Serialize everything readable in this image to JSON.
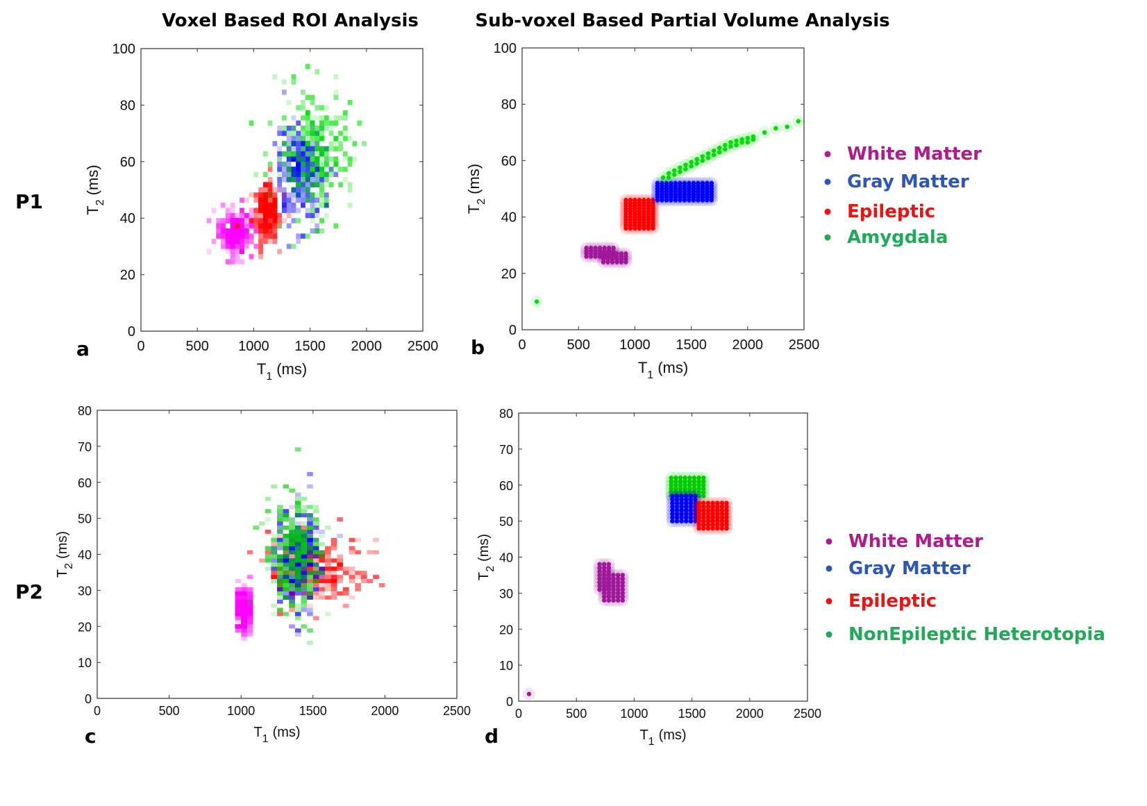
{
  "figure": {
    "title_left": "Voxel Based ROI Analysis",
    "title_right": "Sub-voxel Based Partial Volume Analysis",
    "row_labels": [
      "P1",
      "P2"
    ]
  },
  "colors": {
    "white_matter": "#ff00ff",
    "white_matter_dot": "#a0189a",
    "gray_matter": "#0000ff",
    "epileptic": "#ff0000",
    "amygdala": "#00dd00",
    "nonepileptic": "#00cc00",
    "legend_white_matter": "#b0198f",
    "legend_gray_matter": "#2b58b8",
    "legend_epileptic": "#ee1111",
    "legend_amygdala": "#1faa55"
  },
  "legends": {
    "p1": [
      {
        "label": "White Matter",
        "color_key": "legend_white_matter"
      },
      {
        "label": "Gray Matter",
        "color_key": "legend_gray_matter"
      },
      {
        "label": "Epileptic",
        "color_key": "legend_epileptic"
      },
      {
        "label": "Amygdala",
        "color_key": "legend_amygdala"
      }
    ],
    "p2": [
      {
        "label": "White Matter",
        "color_key": "legend_white_matter"
      },
      {
        "label": "Gray Matter",
        "color_key": "legend_gray_matter"
      },
      {
        "label": "Epileptic",
        "color_key": "legend_epileptic"
      },
      {
        "label": "NonEpileptic Heterotopia",
        "color_key": "legend_amygdala"
      }
    ]
  },
  "chart_data": [
    {
      "id": "a",
      "panel_label": "a",
      "type": "heatmap",
      "xlabel_main": "T",
      "xlabel_sub": "1",
      "xlabel_unit": "(ms)",
      "ylabel_main": "T",
      "ylabel_sub": "2",
      "ylabel_unit": "(ms)",
      "xlim": [
        0,
        2500
      ],
      "ylim": [
        0,
        100
      ],
      "xticks": [
        "0",
        "500",
        "1000",
        "1500",
        "2000",
        "2500"
      ],
      "yticks": [
        "0",
        "20",
        "40",
        "60",
        "80",
        "100"
      ],
      "clusters": [
        {
          "name": "White Matter",
          "color_key": "white_matter",
          "center": [
            830,
            35
          ],
          "spread": [
            70,
            4
          ]
        },
        {
          "name": "Epileptic",
          "color_key": "epileptic",
          "center": [
            1110,
            42
          ],
          "spread": [
            60,
            5
          ]
        },
        {
          "name": "Gray Matter",
          "color_key": "gray_matter",
          "center": [
            1420,
            57
          ],
          "spread": [
            110,
            8
          ]
        },
        {
          "name": "Amygdala",
          "color_key": "amygdala",
          "center": [
            1560,
            63
          ],
          "spread": [
            170,
            11
          ]
        }
      ]
    },
    {
      "id": "b",
      "panel_label": "b",
      "type": "scatter",
      "xlabel_main": "T",
      "xlabel_sub": "1",
      "xlabel_unit": "(ms)",
      "ylabel_main": "T",
      "ylabel_sub": "2",
      "ylabel_unit": "(ms)",
      "xlim": [
        0,
        2500
      ],
      "ylim": [
        0,
        100
      ],
      "xticks": [
        "0",
        "500",
        "1000",
        "1500",
        "2000",
        "2500"
      ],
      "yticks": [
        "0",
        "20",
        "40",
        "60",
        "80",
        "100"
      ],
      "series": [
        {
          "name": "White Matter",
          "color_key": "white_matter_dot",
          "blobs": [
            {
              "x": [
                570,
                820
              ],
              "y": [
                26,
                29
              ]
            },
            {
              "x": [
                720,
                940
              ],
              "y": [
                24,
                27
              ]
            }
          ]
        },
        {
          "name": "Epileptic",
          "color_key": "epileptic",
          "blobs": [
            {
              "x": [
                920,
                1180
              ],
              "y": [
                36,
                46
              ]
            }
          ]
        },
        {
          "name": "Gray Matter",
          "color_key": "gray_matter",
          "blobs": [
            {
              "x": [
                1200,
                1700
              ],
              "y": [
                46,
                52
              ]
            }
          ]
        },
        {
          "name": "Amygdala",
          "color_key": "amygdala",
          "points": [
            [
              130,
              10
            ],
            [
              1250,
              54
            ],
            [
              1300,
              55.5
            ],
            [
              1350,
              56.5
            ],
            [
              1400,
              57.5
            ],
            [
              1450,
              58.5
            ],
            [
              1500,
              59.5
            ],
            [
              1550,
              60.5
            ],
            [
              1600,
              61.5
            ],
            [
              1650,
              62.5
            ],
            [
              1700,
              63.5
            ],
            [
              1750,
              64.5
            ],
            [
              1800,
              65.5
            ],
            [
              1850,
              66.5
            ],
            [
              1900,
              67
            ],
            [
              1950,
              67.5
            ],
            [
              2000,
              68
            ],
            [
              2050,
              68.5
            ],
            [
              2150,
              70
            ],
            [
              2250,
              71.5
            ],
            [
              2350,
              72
            ],
            [
              2450,
              74
            ]
          ],
          "band": [
            [
              1300,
              54
            ],
            [
              1400,
              56
            ],
            [
              1500,
              58
            ],
            [
              1600,
              60
            ],
            [
              1700,
              62
            ],
            [
              1800,
              64
            ],
            [
              1900,
              65.5
            ],
            [
              2000,
              66.5
            ]
          ]
        }
      ]
    },
    {
      "id": "c",
      "panel_label": "c",
      "type": "heatmap",
      "xlabel_main": "T",
      "xlabel_sub": "1",
      "xlabel_unit": "(ms)",
      "ylabel_main": "T",
      "ylabel_sub": "2",
      "ylabel_unit": "(ms)",
      "xlim": [
        0,
        2500
      ],
      "ylim": [
        0,
        80
      ],
      "xticks": [
        "0",
        "500",
        "1000",
        "1500",
        "2000",
        "2500"
      ],
      "yticks": [
        "0",
        "10",
        "20",
        "30",
        "40",
        "50",
        "60",
        "70",
        "80"
      ],
      "clusters": [
        {
          "name": "White Matter",
          "color_key": "white_matter",
          "center": [
            1020,
            24
          ],
          "spread": [
            20,
            3
          ]
        },
        {
          "name": "Epileptic",
          "color_key": "epileptic",
          "center": [
            1530,
            35
          ],
          "spread": [
            170,
            5
          ]
        },
        {
          "name": "Gray Matter",
          "color_key": "gray_matter",
          "center": [
            1400,
            39
          ],
          "spread": [
            70,
            7
          ]
        },
        {
          "name": "NonEpileptic Heterotopia",
          "color_key": "nonepileptic",
          "center": [
            1370,
            40
          ],
          "spread": [
            90,
            8
          ]
        }
      ]
    },
    {
      "id": "d",
      "panel_label": "d",
      "type": "scatter",
      "xlabel_main": "T",
      "xlabel_sub": "1",
      "xlabel_unit": "(ms)",
      "ylabel_main": "T",
      "ylabel_sub": "2",
      "ylabel_unit": "(ms)",
      "xlim": [
        0,
        2500
      ],
      "ylim": [
        0,
        80
      ],
      "xticks": [
        "0",
        "500",
        "1000",
        "1500",
        "2000",
        "2500"
      ],
      "yticks": [
        "0",
        "10",
        "20",
        "30",
        "40",
        "50",
        "60",
        "70",
        "80"
      ],
      "series": [
        {
          "name": "White Matter",
          "color_key": "white_matter_dot",
          "points": [
            [
              90,
              2
            ]
          ],
          "blobs": [
            {
              "x": [
                700,
                800
              ],
              "y": [
                31,
                38
              ]
            },
            {
              "x": [
                740,
                900
              ],
              "y": [
                28,
                35
              ]
            }
          ]
        },
        {
          "name": "NonEpileptic Heterotopia",
          "color_key": "nonepileptic",
          "blobs": [
            {
              "x": [
                1320,
                1620
              ],
              "y": [
                57,
                62
              ]
            }
          ]
        },
        {
          "name": "Gray Matter",
          "color_key": "gray_matter",
          "blobs": [
            {
              "x": [
                1330,
                1560
              ],
              "y": [
                50,
                57
              ]
            }
          ]
        },
        {
          "name": "Epileptic",
          "color_key": "epileptic",
          "blobs": [
            {
              "x": [
                1560,
                1820
              ],
              "y": [
                48,
                55
              ]
            }
          ]
        }
      ]
    }
  ]
}
